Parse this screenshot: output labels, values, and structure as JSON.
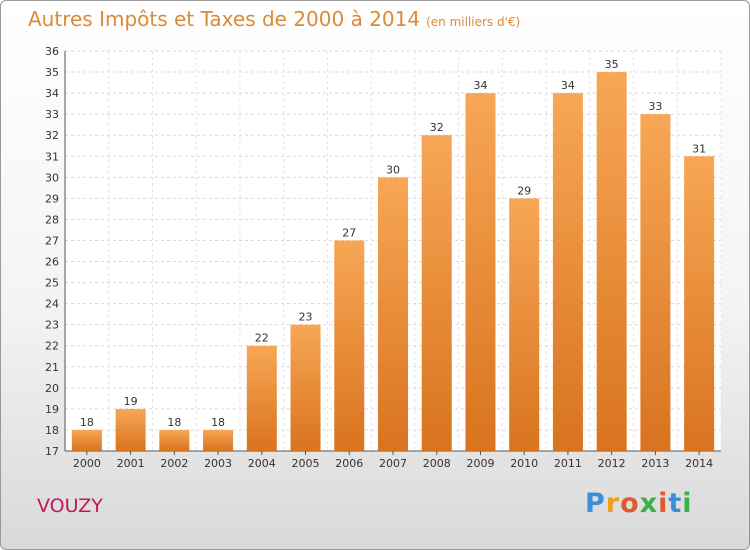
{
  "title": "Autres Impôts et Taxes de 2000 à 2014",
  "subtitle": "(en milliers d'€)",
  "place": "VOUZY",
  "logo": {
    "text": "Proxiti",
    "colors": [
      "#3b8fd6",
      "#e8a21f",
      "#e05a2b",
      "#3bb04a",
      "#e05a2b",
      "#3b8fd6",
      "#3bb04a"
    ]
  },
  "chart_data": {
    "type": "bar",
    "categories": [
      "2000",
      "2001",
      "2002",
      "2003",
      "2004",
      "2005",
      "2006",
      "2007",
      "2008",
      "2009",
      "2010",
      "2011",
      "2012",
      "2013",
      "2014"
    ],
    "values": [
      18,
      19,
      18,
      18,
      22,
      23,
      27,
      30,
      32,
      34,
      29,
      34,
      35,
      33,
      31
    ],
    "ylim": [
      17,
      36
    ],
    "yticks": [
      17,
      18,
      19,
      20,
      21,
      22,
      23,
      24,
      25,
      26,
      27,
      28,
      29,
      30,
      31,
      32,
      33,
      34,
      35,
      36
    ],
    "grid": true,
    "bar_color_top": "#f7a755",
    "bar_color_bottom": "#d9731f",
    "title": "Autres Impôts et Taxes de 2000 à 2014",
    "xlabel": "",
    "ylabel": ""
  }
}
